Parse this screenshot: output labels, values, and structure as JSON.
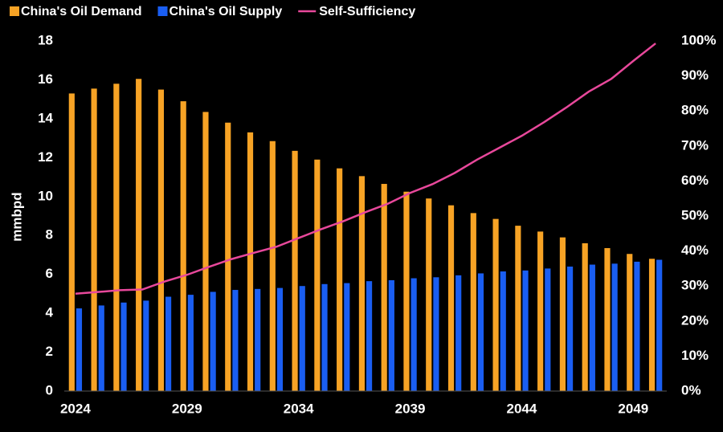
{
  "chart_data": {
    "type": "bar",
    "y_label": "mmbpd",
    "categories": [
      "2024",
      null,
      null,
      null,
      null,
      "2029",
      null,
      null,
      null,
      null,
      "2034",
      null,
      null,
      null,
      null,
      "2039",
      null,
      null,
      null,
      null,
      "2044",
      null,
      null,
      null,
      null,
      "2049",
      null
    ],
    "series": [
      {
        "name": "China's Oil Demand",
        "color": "#f7a325",
        "type": "bar",
        "values": [
          15.3,
          15.55,
          15.8,
          16.05,
          15.5,
          14.9,
          14.35,
          13.8,
          13.3,
          12.85,
          12.35,
          11.9,
          11.45,
          11.05,
          10.65,
          10.25,
          9.9,
          9.55,
          9.15,
          8.85,
          8.5,
          8.2,
          7.9,
          7.6,
          7.35,
          7.05,
          6.8
        ]
      },
      {
        "name": "China's Oil Supply",
        "color": "#1a5ef2",
        "type": "bar",
        "values": [
          4.25,
          4.4,
          4.55,
          4.65,
          4.85,
          4.95,
          5.1,
          5.2,
          5.25,
          5.3,
          5.4,
          5.5,
          5.55,
          5.65,
          5.7,
          5.8,
          5.85,
          5.95,
          6.05,
          6.15,
          6.2,
          6.3,
          6.4,
          6.5,
          6.55,
          6.65,
          6.75
        ]
      },
      {
        "name": "Self-Sufficiency",
        "color": "#e8489b",
        "type": "line",
        "axis": "y2",
        "values": [
          27.8,
          28.3,
          28.8,
          29.0,
          31.3,
          33.2,
          35.5,
          37.7,
          39.5,
          41.2,
          43.7,
          46.2,
          48.5,
          51.1,
          53.5,
          56.6,
          59.1,
          62.3,
          66.1,
          69.5,
          72.9,
          76.8,
          81.0,
          85.5,
          89.1,
          94.3,
          99.3
        ]
      }
    ],
    "ylim": [
      0,
      18
    ],
    "yticks": [
      0,
      2,
      4,
      6,
      8,
      10,
      12,
      14,
      16,
      18
    ],
    "y2lim": [
      0,
      100
    ],
    "y2ticks": [
      {
        "value": 0,
        "label": "0%"
      },
      {
        "value": 10,
        "label": "10%"
      },
      {
        "value": 20,
        "label": "20%"
      },
      {
        "value": 30,
        "label": "30%"
      },
      {
        "value": 40,
        "label": "40%"
      },
      {
        "value": 50,
        "label": "50%"
      },
      {
        "value": 60,
        "label": "60%"
      },
      {
        "value": 70,
        "label": "70%"
      },
      {
        "value": 80,
        "label": "80%"
      },
      {
        "value": 90,
        "label": "90%"
      },
      {
        "value": 100,
        "label": "100%"
      }
    ],
    "legend": "top-left",
    "grid": false
  }
}
